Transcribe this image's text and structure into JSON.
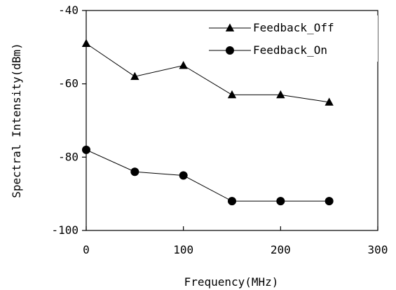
{
  "chart_data": {
    "type": "line",
    "xlabel": "Frequency(MHz)",
    "ylabel": "Spectral Intensity(dBm)",
    "xlim": [
      0,
      300
    ],
    "ylim": [
      -100,
      -40
    ],
    "xticks": [
      "0",
      "100",
      "200",
      "300"
    ],
    "yticks": [
      "-40",
      "-60",
      "-80",
      "-100"
    ],
    "grid": false,
    "legend_position": "top-right",
    "series": [
      {
        "name": "Feedback_Off",
        "marker": "triangle",
        "x": [
          0,
          50,
          100,
          150,
          200,
          250
        ],
        "y": [
          -49,
          -58,
          -55,
          -63,
          -63,
          -65
        ]
      },
      {
        "name": "Feedback_On",
        "marker": "circle",
        "x": [
          0,
          50,
          100,
          150,
          200,
          250
        ],
        "y": [
          -78,
          -84,
          -85,
          -92,
          -92,
          -92
        ]
      }
    ]
  }
}
